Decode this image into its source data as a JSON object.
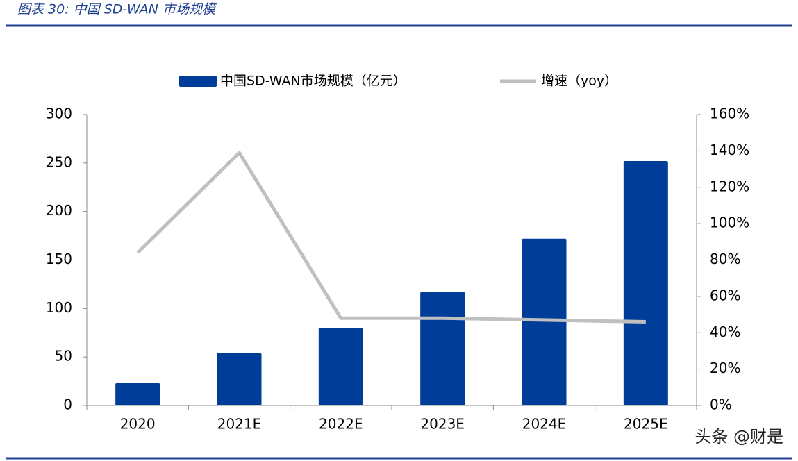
{
  "chart_data": {
    "type": "bar_line",
    "title": "图表 30:  中国 SD-WAN 市场规模",
    "categories": [
      "2020",
      "2021E",
      "2022E",
      "2023E",
      "2024E",
      "2025E"
    ],
    "series": [
      {
        "name": "中国SD-WAN市场规模（亿元）",
        "type": "bar",
        "color": "#003d99",
        "values": [
          23,
          54,
          80,
          117,
          172,
          252
        ]
      },
      {
        "name": "增速（yoy）",
        "type": "line",
        "color": "#c0c0c0",
        "axis": "y2",
        "values": [
          84,
          139,
          48,
          48,
          47,
          46
        ]
      }
    ],
    "ylim": [
      0,
      300
    ],
    "yticks": [
      0,
      50,
      100,
      150,
      200,
      250,
      300
    ],
    "y2lim": [
      0,
      160
    ],
    "y2ticks": [
      {
        "value": 0,
        "label": "0%"
      },
      {
        "value": 20,
        "label": "20%"
      },
      {
        "value": 40,
        "label": "40%"
      },
      {
        "value": 60,
        "label": "60%"
      },
      {
        "value": 80,
        "label": "80%"
      },
      {
        "value": 100,
        "label": "100%"
      },
      {
        "value": 120,
        "label": "120%"
      },
      {
        "value": 140,
        "label": "140%"
      },
      {
        "value": 160,
        "label": "160%"
      }
    ],
    "grid": false,
    "watermark": "头条 @财是"
  }
}
